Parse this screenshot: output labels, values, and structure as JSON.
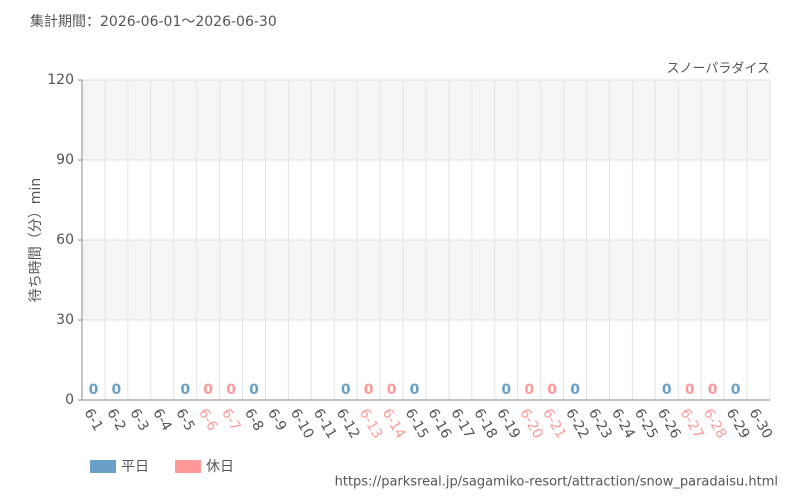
{
  "chart_data": {
    "type": "bar",
    "subtitle": "集計期間：2026-06-01～2026-06-30",
    "title": "スノーパラダイス",
    "y_label": "待ち時間（分）min",
    "source": "https://parksreal.jp/sagamiko-resort/attraction/snow_paradaisu.html",
    "categories": [
      "6-1",
      "6-2",
      "6-3",
      "6-4",
      "6-5",
      "6-6",
      "6-7",
      "6-8",
      "6-9",
      "6-10",
      "6-11",
      "6-12",
      "6-13",
      "6-14",
      "6-15",
      "6-16",
      "6-17",
      "6-18",
      "6-19",
      "6-20",
      "6-21",
      "6-22",
      "6-23",
      "6-24",
      "6-25",
      "6-26",
      "6-27",
      "6-28",
      "6-29",
      "6-30"
    ],
    "series": [
      {
        "name": "平日",
        "color": "#6a9fc8",
        "values": [
          0,
          0,
          null,
          null,
          0,
          null,
          null,
          0,
          null,
          null,
          null,
          0,
          null,
          null,
          0,
          null,
          null,
          null,
          0,
          null,
          null,
          0,
          null,
          null,
          null,
          0,
          null,
          null,
          0,
          null
        ]
      },
      {
        "name": "休日",
        "color": "#ff9999",
        "values": [
          null,
          null,
          null,
          null,
          null,
          0,
          0,
          null,
          null,
          null,
          null,
          null,
          0,
          0,
          null,
          null,
          null,
          null,
          null,
          0,
          0,
          null,
          null,
          null,
          null,
          null,
          0,
          0,
          null,
          null
        ]
      }
    ],
    "ylim": [
      0,
      120
    ],
    "yticks": [
      0,
      30,
      60,
      90,
      120
    ],
    "grid": true
  }
}
